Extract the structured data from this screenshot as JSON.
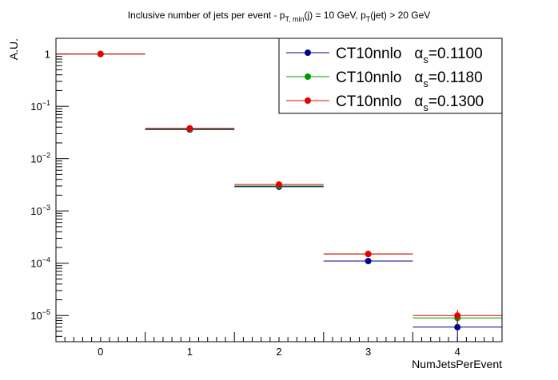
{
  "chart_data": {
    "type": "scatter",
    "title_parts": {
      "lead": "Inclusive number of jets per event - p",
      "sub1": "T, min",
      "mid": "(j) = 10 GeV, p",
      "sub2": "T",
      "tail": "(jet) > 20 GeV"
    },
    "xlabel": "NumJetsPerEvent",
    "ylabel": "A.U.",
    "x_categories": [
      "0",
      "1",
      "2",
      "3",
      "4"
    ],
    "xlim": [
      -0.5,
      4.5
    ],
    "ylim_log10": [
      -5.5,
      0.3
    ],
    "y_scale": "log",
    "y_tick_labels": [
      {
        "base": "1",
        "exp": ""
      },
      {
        "base": "10",
        "exp": "−1"
      },
      {
        "base": "10",
        "exp": "−2"
      },
      {
        "base": "10",
        "exp": "−3"
      },
      {
        "base": "10",
        "exp": "−4"
      },
      {
        "base": "10",
        "exp": "−5"
      }
    ],
    "legend_position": "top-right",
    "series": [
      {
        "name": "CT10nnlo",
        "alpha_label": "α",
        "alpha_sub": "s",
        "alpha_value": "=0.1100",
        "color": "#00008b",
        "values": [
          1.0,
          0.036,
          0.0029,
          0.00011,
          6e-06
        ],
        "errors": [
          0.0,
          0.0,
          0.0,
          0.0,
          3.5e-06
        ]
      },
      {
        "name": "CT10nnlo",
        "alpha_label": "α",
        "alpha_sub": "s",
        "alpha_value": "=0.1180",
        "color": "#009900",
        "values": [
          1.0,
          0.037,
          0.003,
          0.00015,
          9e-06
        ],
        "errors": [
          0.0,
          0.0,
          0.0,
          0.0,
          2.5e-06
        ]
      },
      {
        "name": "CT10nnlo",
        "alpha_label": "α",
        "alpha_sub": "s",
        "alpha_value": "=0.1300",
        "color": "#e60000",
        "values": [
          1.0,
          0.038,
          0.0032,
          0.00015,
          1e-05
        ],
        "errors": [
          0.0,
          0.0,
          0.0,
          0.0,
          3e-06
        ]
      }
    ]
  }
}
